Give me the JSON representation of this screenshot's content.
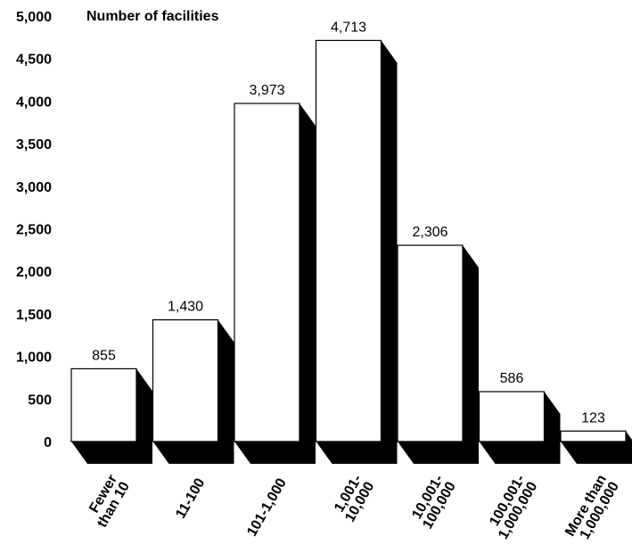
{
  "chart_data": {
    "type": "bar",
    "ylabel": "Number of facilities",
    "ylim": [
      0,
      5000
    ],
    "yticks": [
      0,
      500,
      1000,
      1500,
      2000,
      2500,
      3000,
      3500,
      4000,
      4500,
      5000
    ],
    "ytick_labels": [
      "0",
      "500",
      "1,000",
      "1,500",
      "2,000",
      "2,500",
      "3,000",
      "3,500",
      "4,000",
      "4,500",
      "5,000"
    ],
    "categories": [
      [
        "Fewer",
        "than 10"
      ],
      [
        "11-100"
      ],
      [
        "101-1,000"
      ],
      [
        "1,001-",
        "10,000"
      ],
      [
        "10,001-",
        "100,000"
      ],
      [
        "100,001-",
        "1,000,000"
      ],
      [
        "More than",
        "1,000,000"
      ]
    ],
    "values": [
      855,
      1430,
      3973,
      4713,
      2306,
      586,
      123
    ],
    "value_labels": [
      "855",
      "1,430",
      "3,973",
      "4,713",
      "2,306",
      "586",
      "123"
    ],
    "bar_style": "3d white bars with black shadow",
    "colors": {
      "bar_face": "#ffffff",
      "shadow": "#000000",
      "outline": "#000000"
    }
  }
}
